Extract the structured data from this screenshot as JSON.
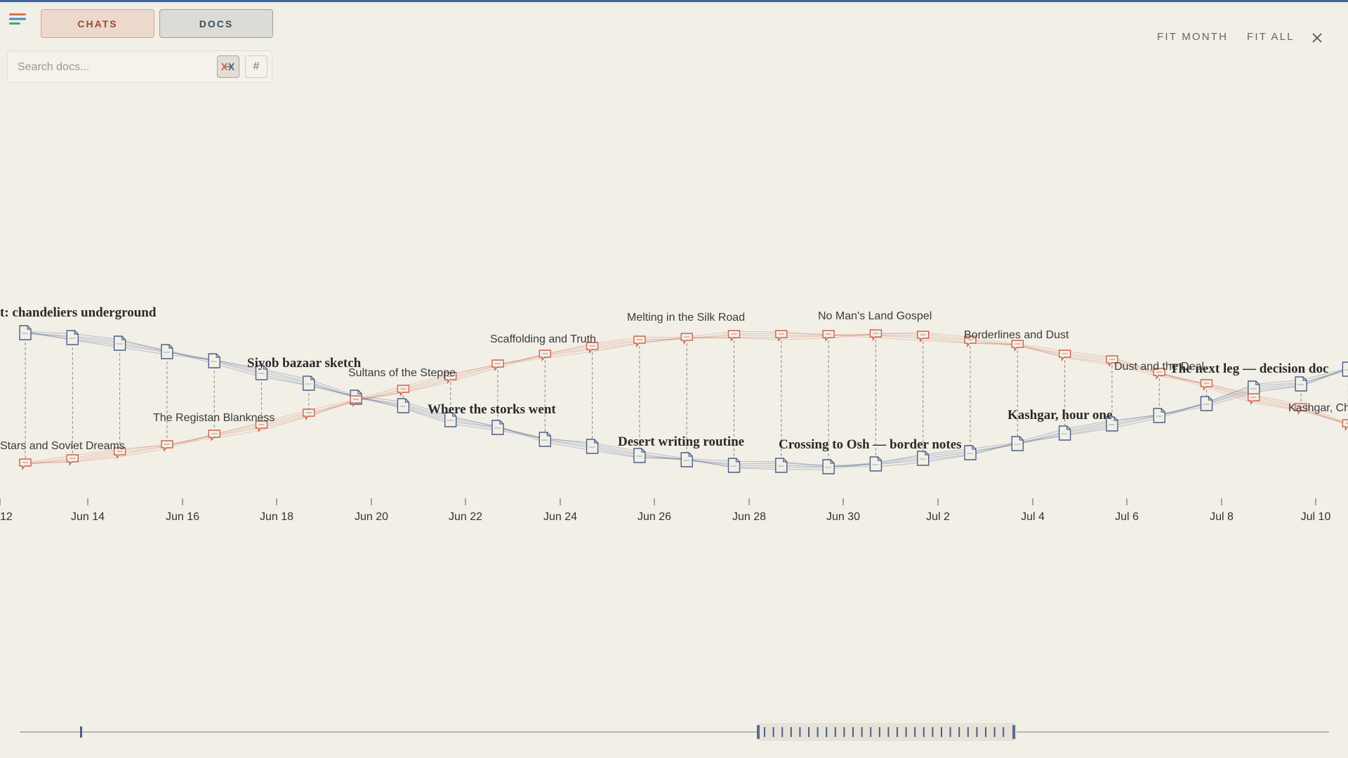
{
  "tabs": {
    "chats_label": "CHATS",
    "docs_label": "DOCS"
  },
  "search": {
    "placeholder": "Search docs...",
    "hash_label": "#"
  },
  "toolbar": {
    "fit_month": "FIT MONTH",
    "fit_all": "FIT ALL"
  },
  "colors": {
    "doc": "#4a5f86",
    "chat": "#c9654a",
    "accent_bar": "#3d64a3",
    "background": "#f2efe7"
  },
  "icons": {
    "menu": "menu-icon",
    "fuzzy": "fuzzy-toggle-icon",
    "close": "close-icon",
    "doc": "document-icon",
    "chat": "chat-bubble-icon"
  },
  "axis": {
    "ticks": [
      "12",
      "Jun 14",
      "Jun 16",
      "Jun 18",
      "Jun 20",
      "Jun 22",
      "Jun 24",
      "Jun 26",
      "Jun 28",
      "Jun 30",
      "Jul 2",
      "Jul 4",
      "Jul 6",
      "Jul 8",
      "Jul 10"
    ]
  },
  "labels": {
    "doc_titles": [
      "t: chandeliers underground",
      "Siyob bazaar sketch",
      "Where the storks went",
      "Desert writing routine",
      "Crossing to Osh — border notes",
      "Kashgar, hour one",
      "The next leg — decision doc"
    ],
    "chat_titles": [
      "Stars and Soviet Dreams",
      "The Registan Blankness",
      "Sultans of the Steppe",
      "Scaffolding and Truth",
      "Melting in the Silk Road",
      "No Man's Land Gospel",
      "Borderlines and Dust",
      "Dust and the Deal",
      "Kashgar, Ch"
    ]
  }
}
